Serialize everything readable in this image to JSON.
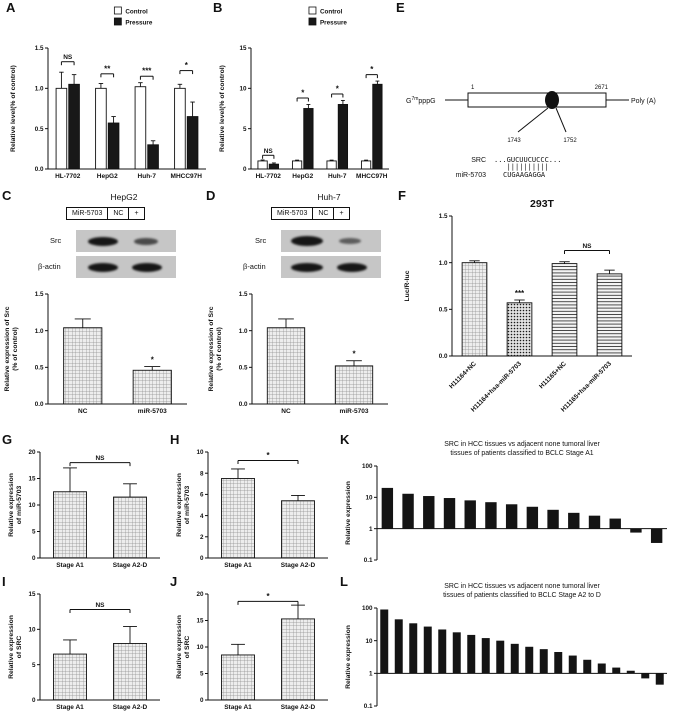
{
  "panel_labels": {
    "A": "A",
    "B": "B",
    "C": "C",
    "D": "D",
    "E": "E",
    "F": "F",
    "G": "G",
    "H": "H",
    "I": "I",
    "J": "J",
    "K": "K",
    "L": "L"
  },
  "blot_c": {
    "title": "HepG2",
    "mir": "MiR-5703",
    "nc": "NC",
    "plus": "+",
    "row1": "Src",
    "row2": "β-actin"
  },
  "blot_d": {
    "title": "Huh-7",
    "mir": "MiR-5703",
    "nc": "NC",
    "plus": "+",
    "row1": "Src",
    "row2": "β-actin"
  },
  "diagram_e": {
    "cap_base": "G",
    "cap_sup": "7m",
    "cap_tail": "pppG",
    "box_start": "1",
    "box_end": "2671",
    "polya": "Poly (A)",
    "pos1": "1743",
    "pos2": "1752",
    "src_label": "SRC",
    "src_seq": "...GUCUUCUCCC...",
    "match_marks": "||||||||||",
    "mir_label": "miR-5703",
    "mir_seq": "CUGAAGAGGA"
  },
  "chart_data": [
    {
      "id": "A",
      "type": "bar",
      "grouped": true,
      "categories": [
        "HL-7702",
        "HepG2",
        "Huh-7",
        "MHCC97H"
      ],
      "series": [
        {
          "name": "Control",
          "fill": "white",
          "values": [
            1.0,
            1.0,
            1.02,
            1.0
          ],
          "errors": [
            0.2,
            0.06,
            0.05,
            0.05
          ]
        },
        {
          "name": "Pressure",
          "fill": "black",
          "values": [
            1.05,
            0.57,
            0.3,
            0.65
          ],
          "errors": [
            0.12,
            0.08,
            0.05,
            0.18
          ]
        }
      ],
      "ylabel_lines": [
        "Relative level(% of control)"
      ],
      "ylim": [
        0,
        1.5
      ],
      "yticks": [
        0,
        0.5,
        1,
        1.5
      ],
      "yticklabels": [
        "0.0",
        "0.5",
        "1.0",
        "1.5"
      ],
      "legend": true,
      "legend_position": "top",
      "annotations": [
        {
          "kind": "bracket",
          "cat": 0,
          "between_series": true,
          "y": 1.33,
          "label": "NS"
        },
        {
          "kind": "bracket",
          "cat": 1,
          "between_series": true,
          "y": 1.18,
          "label": "**"
        },
        {
          "kind": "bracket",
          "cat": 2,
          "between_series": true,
          "y": 1.15,
          "label": "***"
        },
        {
          "kind": "bracket",
          "cat": 3,
          "between_series": true,
          "y": 1.22,
          "label": "*"
        }
      ]
    },
    {
      "id": "B",
      "type": "bar",
      "grouped": true,
      "categories": [
        "HL-7702",
        "HepG2",
        "Huh-7",
        "MHCC97H"
      ],
      "series": [
        {
          "name": "Control",
          "fill": "white",
          "values": [
            1,
            1,
            1,
            1
          ],
          "errors": [
            0.12,
            0.1,
            0.1,
            0.1
          ]
        },
        {
          "name": "Pressure",
          "fill": "black",
          "values": [
            0.6,
            7.5,
            8.0,
            10.5
          ],
          "errors": [
            0.15,
            0.5,
            0.5,
            0.4
          ]
        }
      ],
      "ylabel_lines": [
        "Relative level(% of control)"
      ],
      "ylim": [
        0,
        15
      ],
      "yticks": [
        0,
        5,
        10,
        15
      ],
      "yticklabels": [
        "0",
        "5",
        "10",
        "15"
      ],
      "legend": true,
      "legend_position": "top",
      "annotations": [
        {
          "kind": "bracket",
          "cat": 0,
          "between_series": true,
          "y": 1.7,
          "label": "NS"
        },
        {
          "kind": "bracket",
          "cat": 1,
          "between_series": true,
          "y": 8.8,
          "label": "*"
        },
        {
          "kind": "bracket",
          "cat": 2,
          "between_series": true,
          "y": 9.3,
          "label": "*"
        },
        {
          "kind": "bracket",
          "cat": 3,
          "between_series": true,
          "y": 11.7,
          "label": "*"
        }
      ]
    },
    {
      "id": "C",
      "type": "bar",
      "categories": [
        "NC",
        "miR-5703"
      ],
      "series": [
        {
          "name": "",
          "fill": "check",
          "values": [
            1.04,
            0.46
          ],
          "errors": [
            0.12,
            0.05
          ]
        }
      ],
      "ylabel_lines": [
        "Relative expression of Src",
        "(% of control)"
      ],
      "ylim": [
        0,
        1.5
      ],
      "yticks": [
        0,
        0.5,
        1,
        1.5
      ],
      "yticklabels": [
        "0.0",
        "0.5",
        "1.0",
        "1.5"
      ],
      "annotations": [
        {
          "kind": "star",
          "cat": 1,
          "series": 0,
          "label": "*"
        }
      ]
    },
    {
      "id": "D",
      "type": "bar",
      "categories": [
        "NC",
        "miR-5703"
      ],
      "series": [
        {
          "name": "",
          "fill": "check",
          "values": [
            1.04,
            0.52
          ],
          "errors": [
            0.12,
            0.07
          ]
        }
      ],
      "ylabel_lines": [
        "Relative expression of Src",
        "(% of control)"
      ],
      "ylim": [
        0,
        1.5
      ],
      "yticks": [
        0,
        0.5,
        1,
        1.5
      ],
      "yticklabels": [
        "0.0",
        "0.5",
        "1.0",
        "1.5"
      ],
      "annotations": [
        {
          "kind": "star",
          "cat": 1,
          "series": 0,
          "label": "*"
        }
      ]
    },
    {
      "id": "F",
      "type": "bar",
      "title": "293T",
      "categories": [
        "H11164+NC",
        "H11164+hsa-miR-5703",
        "H11165+NC",
        "H11165+hsa-miR-5703"
      ],
      "series": [
        {
          "name": "",
          "fills": [
            "check",
            "dots",
            "hlines",
            "hlines"
          ],
          "values": [
            1.0,
            0.57,
            0.99,
            0.88
          ],
          "errors": [
            0.02,
            0.03,
            0.02,
            0.04
          ]
        }
      ],
      "ylabel_lines": [
        "Luc/R-luc"
      ],
      "ylim": [
        0,
        1.5
      ],
      "yticks": [
        0,
        0.5,
        1,
        1.5
      ],
      "yticklabels": [
        "0.0",
        "0.5",
        "1.0",
        "1.5"
      ],
      "xlabel_rotate": 45,
      "annotations": [
        {
          "kind": "star",
          "cat": 1,
          "series": 0,
          "label": "***"
        },
        {
          "kind": "bracket",
          "cat": 2,
          "cat2": 3,
          "y": 1.13,
          "label": "NS"
        }
      ]
    },
    {
      "id": "G",
      "type": "bar",
      "categories": [
        "Stage A1",
        "Stage A2-D"
      ],
      "series": [
        {
          "name": "",
          "fill": "check",
          "values": [
            12.5,
            11.5
          ],
          "errors": [
            4.5,
            2.5
          ]
        }
      ],
      "ylabel_lines": [
        "Relative expression",
        "of miR-5703"
      ],
      "ylim": [
        0,
        20
      ],
      "yticks": [
        0,
        5,
        10,
        15,
        20
      ],
      "yticklabels": [
        "0",
        "5",
        "10",
        "15",
        "20"
      ],
      "annotations": [
        {
          "kind": "bracket",
          "cat": 0,
          "cat2": 1,
          "y": 18,
          "label": "NS"
        }
      ]
    },
    {
      "id": "H",
      "type": "bar",
      "categories": [
        "Stage A1",
        "Stage A2-D"
      ],
      "series": [
        {
          "name": "",
          "fill": "check",
          "values": [
            7.5,
            5.4
          ],
          "errors": [
            0.9,
            0.5
          ]
        }
      ],
      "ylabel_lines": [
        "Relative expression",
        "of miR-5703"
      ],
      "ylim": [
        0,
        10
      ],
      "yticks": [
        0,
        2,
        4,
        6,
        8,
        10
      ],
      "yticklabels": [
        "0",
        "2",
        "4",
        "6",
        "8",
        "10"
      ],
      "annotations": [
        {
          "kind": "bracket",
          "cat": 0,
          "cat2": 1,
          "y": 9.2,
          "label": "*"
        }
      ]
    },
    {
      "id": "I",
      "type": "bar",
      "categories": [
        "Stage A1",
        "Stage A2-D"
      ],
      "series": [
        {
          "name": "",
          "fill": "check",
          "values": [
            6.5,
            8.0
          ],
          "errors": [
            2.0,
            2.4
          ]
        }
      ],
      "ylabel_lines": [
        "Relative expression",
        "of SRC"
      ],
      "ylim": [
        0,
        15
      ],
      "yticks": [
        0,
        5,
        10,
        15
      ],
      "yticklabels": [
        "0",
        "5",
        "10",
        "15"
      ],
      "annotations": [
        {
          "kind": "bracket",
          "cat": 0,
          "cat2": 1,
          "y": 12.8,
          "label": "NS"
        }
      ]
    },
    {
      "id": "J",
      "type": "bar",
      "categories": [
        "Stage A1",
        "Stage A2-D"
      ],
      "series": [
        {
          "name": "",
          "fill": "check",
          "values": [
            8.5,
            15.3
          ],
          "errors": [
            2.0,
            2.6
          ]
        }
      ],
      "ylabel_lines": [
        "Relative expression",
        "of SRC"
      ],
      "ylim": [
        0,
        20
      ],
      "yticks": [
        0,
        5,
        10,
        15,
        20
      ],
      "yticklabels": [
        "0",
        "5",
        "10",
        "15",
        "20"
      ],
      "annotations": [
        {
          "kind": "bracket",
          "cat": 0,
          "cat2": 1,
          "y": 18.6,
          "label": "*"
        }
      ]
    },
    {
      "id": "K",
      "type": "waterfall-log",
      "title_lines": [
        "SRC in HCC tissues vs adjacent none tumoral liver",
        "tissues of patients classified to BCLC Stage A1"
      ],
      "ylabel_lines": [
        "Relative expression"
      ],
      "ylim": [
        0.1,
        100
      ],
      "yticks": [
        0.1,
        1,
        10,
        100
      ],
      "yticklabels": [
        "0.1",
        "1",
        "10",
        "100"
      ],
      "baseline": 1,
      "values": [
        20,
        13,
        11,
        9.5,
        8,
        7,
        6,
        5,
        4,
        3.2,
        2.6,
        2.1,
        0.75,
        0.35
      ]
    },
    {
      "id": "L",
      "type": "waterfall-log",
      "title_lines": [
        "SRC in HCC tissues vs adjacent none tumoral liver",
        "tissues of patients classified to BCLC Stage A2 to D"
      ],
      "ylabel_lines": [
        "Relative expression"
      ],
      "ylim": [
        0.1,
        100
      ],
      "yticks": [
        0.1,
        1,
        10,
        100
      ],
      "yticklabels": [
        "0.1",
        "1",
        "10",
        "100"
      ],
      "baseline": 1,
      "values": [
        90,
        45,
        34,
        27,
        22,
        18,
        15,
        12,
        10,
        8,
        6.5,
        5.5,
        4.5,
        3.5,
        2.6,
        2.0,
        1.5,
        1.2,
        0.7,
        0.45
      ]
    }
  ]
}
